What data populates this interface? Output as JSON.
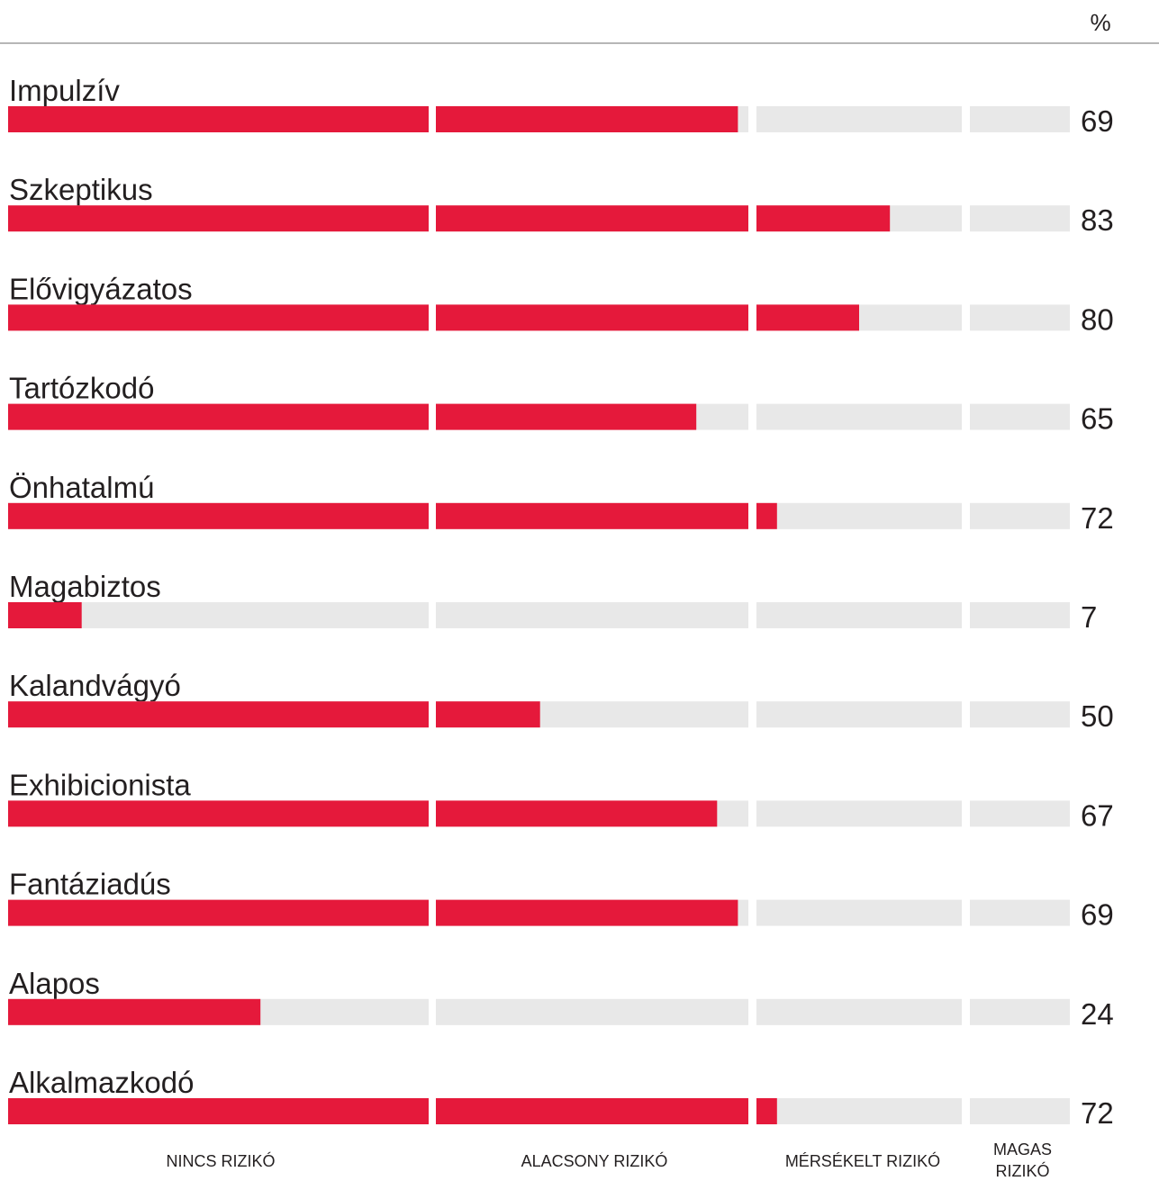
{
  "chart_data": {
    "type": "bar",
    "unit": "%",
    "segments": [
      "NINCS RIZIKÓ",
      "ALACSONY RIZIKÓ",
      "MÉRSÉKELT RIZIKÓ",
      "MAGAS RIZIKÓ"
    ],
    "segment_ranges": [
      [
        0,
        40
      ],
      [
        40,
        70
      ],
      [
        70,
        90
      ],
      [
        90,
        100
      ]
    ],
    "categories": [
      "Impulzív",
      "Szkeptikus",
      "Elővigyázatos",
      "Tartózkodó",
      "Önhatalmú",
      "Magabiztos",
      "Kalandvágyó",
      "Exhibicionista",
      "Fantáziadús",
      "Alapos",
      "Alkalmazkodó"
    ],
    "values": [
      69,
      83,
      80,
      65,
      72,
      7,
      50,
      67,
      69,
      24,
      72
    ],
    "xlim": [
      0,
      100
    ],
    "colors": {
      "fill": "#e5193b",
      "track": "#e8e8e8",
      "rule": "#9d9d9d"
    }
  }
}
